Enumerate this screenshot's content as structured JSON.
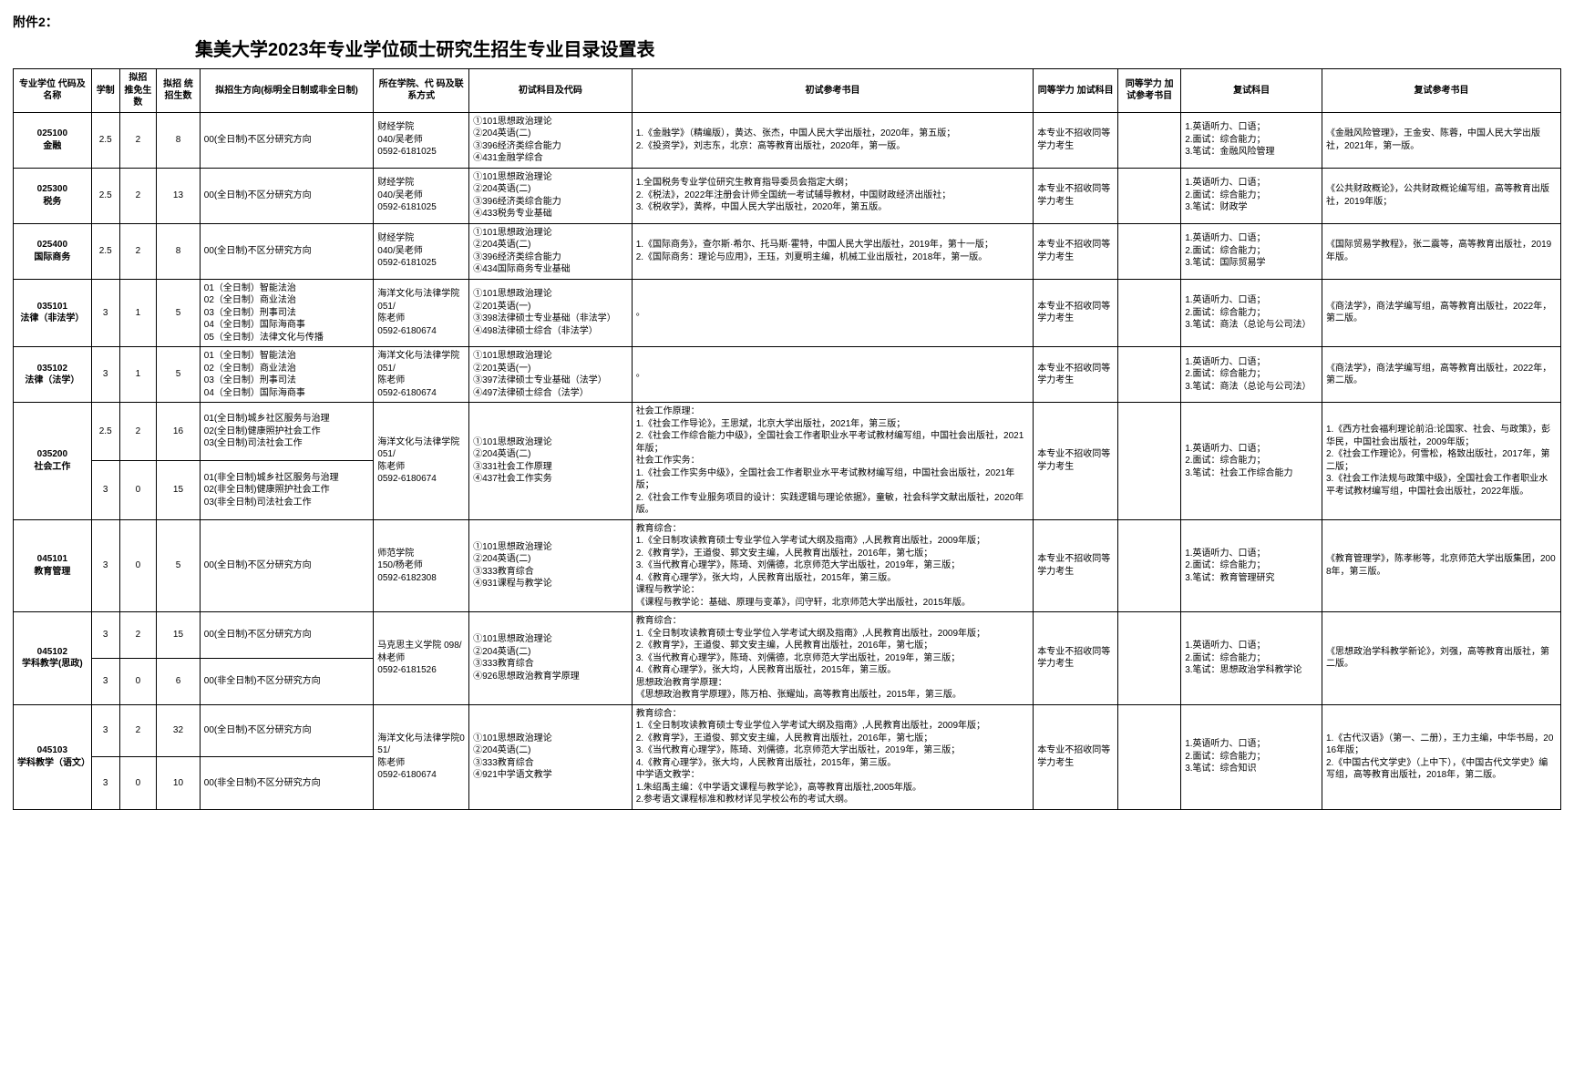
{
  "attachment_label": "附件2：",
  "page_title": "集美大学2023年专业学位硕士研究生招生专业目录设置表",
  "headers": {
    "h1": "专业学位\n代码及名称",
    "h2": "学制",
    "h3": "拟招\n推免生数",
    "h4": "拟招\n统招生数",
    "h5": "拟招生方向(标明全日制或非全日制)",
    "h6": "所在学院、代\n码及联系方式",
    "h7": "初试科目及代码",
    "h8": "初试参考书目",
    "h9": "同等学力\n加试科目",
    "h10": "同等学力\n加试参考书目",
    "h11": "复试科目",
    "h12": "复试参考书目"
  },
  "rows": [
    {
      "code": "025100\n金融",
      "xuezhi": "2.5",
      "n1": "2",
      "n2": "8",
      "dir": "00(全日制)不区分研究方向",
      "dept": "财经学院\n040/吴老师\n0592-6181025",
      "exam": "①101思想政治理论\n②204英语(二)\n③396经济类综合能力\n④431金融学综合",
      "ref1": "1.《金融学》（精编版），黄达、张杰，中国人民大学出版社，2020年，第五版；\n2.《投资学》，刘志东，北京：高等教育出版社，2020年，第一版。",
      "tdxk": "本专业不招收同等学力考生",
      "tdref": "",
      "fushi": "1.英语听力、口语；\n2.面试：综合能力；\n3.笔试：金融风险管理",
      "fref": "《金融风险管理》，王金安、陈蓉，中国人民大学出版社，2021年，第一版。"
    },
    {
      "code": "025300\n税务",
      "xuezhi": "2.5",
      "n1": "2",
      "n2": "13",
      "dir": "00(全日制)不区分研究方向",
      "dept": "财经学院\n040/吴老师\n0592-6181025",
      "exam": "①101思想政治理论\n②204英语(二)\n③396经济类综合能力\n④433税务专业基础",
      "ref1": "1.全国税务专业学位研究生教育指导委员会指定大纲；\n2.《税法》，2022年注册会计师全国统一考试辅导教材，中国财政经济出版社；\n3.《税收学》，黄桦，中国人民大学出版社，2020年，第五版。",
      "tdxk": "本专业不招收同等学力考生",
      "tdref": "",
      "fushi": "1.英语听力、口语；\n2.面试：综合能力；\n3.笔试：财政学",
      "fref": "《公共财政概论》，公共财政概论编写组，高等教育出版社，2019年版；"
    },
    {
      "code": "025400\n国际商务",
      "xuezhi": "2.5",
      "n1": "2",
      "n2": "8",
      "dir": "00(全日制)不区分研究方向",
      "dept": "财经学院\n040/吴老师\n0592-6181025",
      "exam": "①101思想政治理论\n②204英语(二)\n③396经济类综合能力\n④434国际商务专业基础",
      "ref1": "1.《国际商务》，查尔斯·希尔、托马斯·霍特，中国人民大学出版社，2019年，第十一版；\n2.《国际商务：理论与应用》，王珏，刘夏明主编，机械工业出版社，2018年，第一版。",
      "tdxk": "本专业不招收同等学力考生",
      "tdref": "",
      "fushi": "1.英语听力、口语；\n2.面试：综合能力；\n3.笔试：国际贸易学",
      "fref": "《国际贸易学教程》，张二震等，高等教育出版社，2019年版。"
    },
    {
      "code": "035101\n法律（非法学）",
      "xuezhi": "3",
      "n1": "1",
      "n2": "5",
      "dir": "01（全日制）智能法治\n02（全日制）商业法治\n03（全日制）刑事司法\n04（全日制）国际海商事\n05（全日制）法律文化与传播",
      "dept": "海洋文化与法律学院 051/\n陈老师\n0592-6180674",
      "exam": "①101思想政治理论\n②201英语(一)\n③398法律硕士专业基础（非法学）\n④498法律硕士综合（非法学）",
      "ref1": "。",
      "tdxk": "本专业不招收同等学力考生",
      "tdref": "",
      "fushi": "1.英语听力、口语；\n2.面试：综合能力；\n3.笔试：商法（总论与公司法）",
      "fref": "《商法学》，商法学编写组，高等教育出版社，2022年，第二版。"
    },
    {
      "code": "035102\n法律（法学）",
      "xuezhi": "3",
      "n1": "1",
      "n2": "5",
      "dir": "01（全日制）智能法治\n02（全日制）商业法治\n03（全日制）刑事司法\n04（全日制）国际海商事",
      "dept": "海洋文化与法律学院 051/\n陈老师\n0592-6180674",
      "exam": "①101思想政治理论\n②201英语(一)\n③397法律硕士专业基础（法学）\n④497法律硕士综合（法学）",
      "ref1": "。",
      "tdxk": "本专业不招收同等学力考生",
      "tdref": "",
      "fushi": "1.英语听力、口语；\n2.面试：综合能力；\n3.笔试：商法（总论与公司法）",
      "fref": "《商法学》，商法学编写组，高等教育出版社，2022年，第二版。"
    },
    {
      "code": "035200\n社会工作",
      "sub": [
        {
          "xuezhi": "2.5",
          "n1": "2",
          "n2": "16",
          "dir": "01(全日制)城乡社区服务与治理\n02(全日制)健康照护社会工作\n03(全日制)司法社会工作"
        },
        {
          "xuezhi": "3",
          "n1": "0",
          "n2": "15",
          "dir": "01(非全日制)城乡社区服务与治理\n02(非全日制)健康照护社会工作\n03(非全日制)司法社会工作"
        }
      ],
      "dept": "海洋文化与法律学院 051/\n陈老师\n0592-6180674",
      "exam": "①101思想政治理论\n②204英语(二)\n③331社会工作原理\n④437社会工作实务",
      "ref1": "社会工作原理：\n1.《社会工作导论》，王思斌，北京大学出版社，2021年，第三版；\n2.《社会工作综合能力中级》，全国社会工作者职业水平考试教材编写组，中国社会出版社，2021年版；\n社会工作实务：\n1.《社会工作实务中级》，全国社会工作者职业水平考试教材编写组，中国社会出版社，2021年版；\n2.《社会工作专业服务项目的设计：实践逻辑与理论依据》，童敏，社会科学文献出版社，2020年版。",
      "tdxk": "本专业不招收同等学力考生",
      "tdref": "",
      "fushi": "1.英语听力、口语；\n2.面试：综合能力；\n3.笔试：社会工作综合能力",
      "fref": "1.《西方社会福利理论前沿:论国家、社会、与政策》，彭华民，中国社会出版社，2009年版；\n2.《社会工作理论》，何雪松，格致出版社，2017年，第二版；\n3.《社会工作法规与政策中级》，全国社会工作者职业水平考试教材编写组，中国社会出版社，2022年版。"
    },
    {
      "code": "045101\n教育管理",
      "xuezhi": "3",
      "n1": "0",
      "n2": "5",
      "dir": "00(全日制)不区分研究方向",
      "dept": "师范学院\n150/杨老师\n0592-6182308",
      "exam": "①101思想政治理论\n②204英语(二)\n③333教育综合\n④931课程与教学论",
      "ref1": "教育综合：\n1.《全日制攻读教育硕士专业学位入学考试大纲及指南》,人民教育出版社，2009年版；\n2.《教育学》，王道俊、郭文安主编，人民教育出版社，2016年，第七版；\n3.《当代教育心理学》，陈琦、刘儒德，北京师范大学出版社，2019年，第三版；\n4.《教育心理学》，张大均，人民教育出版社，2015年，第三版。\n课程与教学论：\n《课程与教学论：基础、原理与变革》，闫守轩，北京师范大学出版社，2015年版。",
      "tdxk": "本专业不招收同等学力考生",
      "tdref": "",
      "fushi": "1.英语听力、口语；\n2.面试：综合能力；\n3.笔试：教育管理研究",
      "fref": "《教育管理学》，陈孝彬等，北京师范大学出版集团，2008年，第三版。"
    },
    {
      "code": "045102\n学科教学(思政)",
      "sub": [
        {
          "xuezhi": "3",
          "n1": "2",
          "n2": "15",
          "dir": "00(全日制)不区分研究方向"
        },
        {
          "xuezhi": "3",
          "n1": "0",
          "n2": "6",
          "dir": "00(非全日制)不区分研究方向"
        }
      ],
      "dept": "马克思主义学院 098/\n林老师\n0592-6181526",
      "exam": "①101思想政治理论\n②204英语(二)\n③333教育综合\n④926思想政治教育学原理",
      "ref1": "教育综合：\n1.《全日制攻读教育硕士专业学位入学考试大纲及指南》,人民教育出版社，2009年版；\n2.《教育学》，王道俊、郭文安主编，人民教育出版社，2016年，第七版；\n3.《当代教育心理学》，陈琦、刘儒德，北京师范大学出版社，2019年，第三版；\n4.《教育心理学》，张大均，人民教育出版社，2015年，第三版。\n思想政治教育学原理：\n《思想政治教育学原理》，陈万柏、张耀灿，高等教育出版社，2015年，第三版。",
      "tdxk": "本专业不招收同等学力考生",
      "tdref": "",
      "fushi": "1.英语听力、口语；\n2.面试：综合能力；\n3.笔试：思想政治学科教学论",
      "fref": "《思想政治学科教学新论》，刘强，高等教育出版社，第二版。"
    },
    {
      "code": "045103\n学科教学（语文）",
      "sub": [
        {
          "xuezhi": "3",
          "n1": "2",
          "n2": "32",
          "dir": "00(全日制)不区分研究方向"
        },
        {
          "xuezhi": "3",
          "n1": "0",
          "n2": "10",
          "dir": "00(非全日制)不区分研究方向"
        }
      ],
      "dept": "海洋文化与法律学院051/\n陈老师\n0592-6180674",
      "exam": "①101思想政治理论\n②204英语(二)\n③333教育综合\n④921中学语文教学",
      "ref1": "教育综合：\n1.《全日制攻读教育硕士专业学位入学考试大纲及指南》,人民教育出版社，2009年版；\n2.《教育学》，王道俊、郭文安主编，人民教育出版社，2016年，第七版；\n3.《当代教育心理学》，陈琦、刘儒德，北京师范大学出版社，2019年，第三版；\n4.《教育心理学》，张大均，人民教育出版社，2015年，第三版。\n中学语文教学：\n1.朱绍禹主编：《中学语文课程与教学论》，高等教育出版社,2005年版。\n2.参考语文课程标准和教材详见学校公布的考试大纲。",
      "tdxk": "本专业不招收同等学力考生",
      "tdref": "",
      "fushi": "1.英语听力、口语；\n2.面试：综合能力；\n3.笔试：综合知识",
      "fref": "1.《古代汉语》（第一、二册），王力主编，中华书局，2016年版；\n2.《中国古代文学史》（上中下），《中国古代文学史》编写组，高等教育出版社，2018年，第二版。"
    }
  ]
}
